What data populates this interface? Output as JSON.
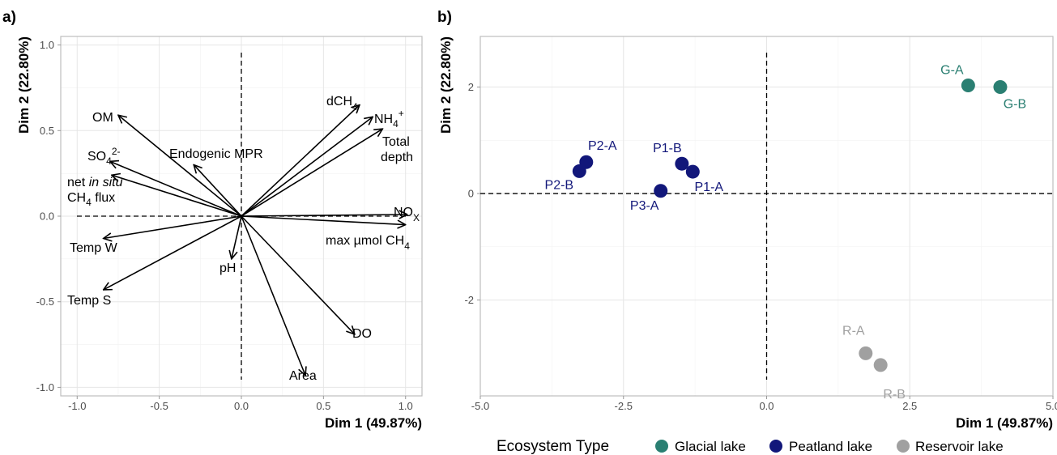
{
  "panels": {
    "a": {
      "label": "a)"
    },
    "b": {
      "label": "b)"
    }
  },
  "chart_data": [
    {
      "type": "biplot-variables",
      "panel": "a)",
      "xlabel": "Dim 1 (49.87%)",
      "ylabel": "Dim 2 (22.80%)",
      "xlim": [
        -1.1,
        1.1
      ],
      "ylim": [
        -1.05,
        1.05
      ],
      "xticks": [
        -1.0,
        -0.5,
        0.0,
        0.5,
        1.0
      ],
      "xtick_labels": [
        "-1.0",
        "-0.5",
        "0.0",
        "0.5",
        "1.0"
      ],
      "yticks": [
        -1.0,
        -0.5,
        0.0,
        0.5,
        1.0
      ],
      "ytick_labels": [
        "-1.0",
        "-0.5",
        "0.0",
        "0.5",
        "1.0"
      ],
      "grid": true,
      "reference_lines": "dashed at x=0 and y=0",
      "vectors": [
        {
          "name": "OM",
          "x": -0.75,
          "y": 0.59
        },
        {
          "name": "SO4 2-",
          "x": -0.8,
          "y": 0.32
        },
        {
          "name": "net in situ CH4 flux",
          "x": -0.79,
          "y": 0.24
        },
        {
          "name": "Endogenic MPR",
          "x": -0.29,
          "y": 0.3
        },
        {
          "name": "Temp W",
          "x": -0.84,
          "y": -0.13
        },
        {
          "name": "Temp S",
          "x": -0.84,
          "y": -0.43
        },
        {
          "name": "pH",
          "x": -0.06,
          "y": -0.25
        },
        {
          "name": "Area",
          "x": 0.39,
          "y": -0.93
        },
        {
          "name": "DO",
          "x": 0.69,
          "y": -0.69
        },
        {
          "name": "max µmol CH4",
          "x": 1.0,
          "y": -0.05
        },
        {
          "name": "NOx",
          "x": 1.01,
          "y": 0.01
        },
        {
          "name": "Total depth",
          "x": 0.86,
          "y": 0.51
        },
        {
          "name": "NH4+",
          "x": 0.8,
          "y": 0.58
        },
        {
          "name": "dCH4",
          "x": 0.72,
          "y": 0.65
        }
      ]
    },
    {
      "type": "scatter",
      "panel": "b)",
      "xlabel": "Dim 1 (49.87%)",
      "ylabel": "Dim 2 (22.80%)",
      "xlim": [
        -5.0,
        5.0
      ],
      "ylim": [
        -3.8,
        2.95
      ],
      "xticks": [
        -5.0,
        -2.5,
        0.0,
        2.5,
        5.0
      ],
      "xtick_labels": [
        "-5.0",
        "-2.5",
        "0.0",
        "2.5",
        "5.0"
      ],
      "yticks": [
        -2,
        0,
        2
      ],
      "ytick_labels": [
        "-2",
        "0",
        "2"
      ],
      "grid": true,
      "reference_lines": "dashed at x=0 and y=0",
      "legend": {
        "title": "Ecosystem Type",
        "placement": "bottom"
      },
      "series": [
        {
          "name": "Glacial lake",
          "color": "#2a7f72",
          "points": [
            {
              "label": "G-A",
              "x": 3.52,
              "y": 2.03
            },
            {
              "label": "G-B",
              "x": 4.08,
              "y": 2.0
            }
          ]
        },
        {
          "name": "Peatland lake",
          "color": "#12177a",
          "points": [
            {
              "label": "P2-A",
              "x": -3.15,
              "y": 0.59
            },
            {
              "label": "P2-B",
              "x": -3.27,
              "y": 0.42
            },
            {
              "label": "P1-B",
              "x": -1.48,
              "y": 0.56
            },
            {
              "label": "P1-A",
              "x": -1.29,
              "y": 0.41
            },
            {
              "label": "P3-A",
              "x": -1.85,
              "y": 0.05
            }
          ]
        },
        {
          "name": "Reservoir lake",
          "color": "#a0a0a0",
          "points": [
            {
              "label": "R-A",
              "x": 1.73,
              "y": -3.0
            },
            {
              "label": "R-B",
              "x": 1.99,
              "y": -3.22
            }
          ]
        }
      ]
    }
  ]
}
